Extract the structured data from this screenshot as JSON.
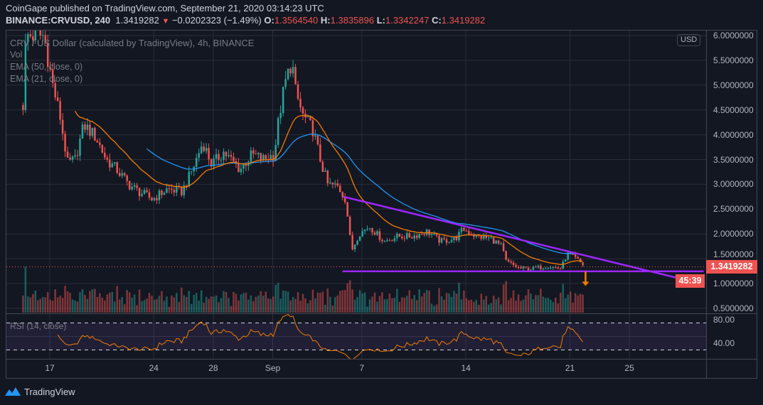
{
  "header": {
    "published": "CoinGape published on TradingView.com, September 21, 2020 03:14:23 UTC",
    "symbol": "BINANCE:CRVUSD, 240",
    "last": "1.3419282",
    "change": "−0.0202323 (−1.49%)",
    "o_label": "O:",
    "o": "1.3564540",
    "h_label": "H:",
    "h": "1.3835896",
    "l_label": "L:",
    "l": "1.3342247",
    "c_label": "C:",
    "c": "1.3419282"
  },
  "legend": {
    "title": "CRV / US Dollar (calculated by TradingView), 4h, BINANCE",
    "vol": "Vol",
    "ema50": "EMA (50, close, 0)",
    "ema21": "EMA (21, close, 0)",
    "rsi": "RSI (14, close)"
  },
  "axis": {
    "currency": "USD",
    "price_ticks": [
      "6.0000000",
      "5.5000000",
      "5.0000000",
      "4.5000000",
      "4.0000000",
      "3.5000000",
      "3.0000000",
      "2.5000000",
      "2.0000000",
      "1.5000000",
      "1.0000000",
      "0.5000000"
    ],
    "rsi_ticks": [
      "80.00",
      "40.00"
    ],
    "time_ticks": [
      {
        "label": "17",
        "day": 0
      },
      {
        "label": "24",
        "day": 7
      },
      {
        "label": "28",
        "day": 11
      },
      {
        "label": "Sep",
        "day": 15
      },
      {
        "label": "7",
        "day": 21
      },
      {
        "label": "14",
        "day": 28
      },
      {
        "label": "21",
        "day": 35
      },
      {
        "label": "25",
        "day": 39
      }
    ],
    "last_price_label": "1.3419282",
    "countdown": "45:39"
  },
  "colors": {
    "up": "#26a69a",
    "down": "#ef5350",
    "ema50": "#2196f3",
    "ema21": "#f57c00",
    "trendline": "#9c27ff",
    "arrow": "#f57c00",
    "rsi": "#f57c00"
  },
  "brand": "TradingView",
  "chart_data": {
    "type": "candlestick",
    "title": "CRV / US Dollar, 4h, BINANCE",
    "x_unit": "days since Aug 17 2020",
    "ylim": [
      0.5,
      6.0
    ],
    "rsi_ylim": [
      30,
      80
    ],
    "rsi_bands": [
      30,
      70
    ],
    "approx_close_path": [
      [
        -1.8,
        4.6
      ],
      [
        -1.6,
        6.0
      ],
      [
        -0.4,
        6.0
      ],
      [
        0.2,
        5.0
      ],
      [
        0.7,
        4.35
      ],
      [
        1.2,
        3.42
      ],
      [
        1.7,
        3.5
      ],
      [
        2.3,
        4.2
      ],
      [
        3.1,
        3.95
      ],
      [
        3.8,
        3.5
      ],
      [
        4.5,
        3.3
      ],
      [
        5.3,
        3.0
      ],
      [
        6.0,
        2.85
      ],
      [
        6.9,
        2.7
      ],
      [
        7.9,
        2.9
      ],
      [
        8.9,
        2.85
      ],
      [
        9.6,
        3.3
      ],
      [
        10.3,
        3.85
      ],
      [
        10.9,
        3.4
      ],
      [
        11.7,
        3.65
      ],
      [
        12.8,
        3.3
      ],
      [
        13.6,
        3.6
      ],
      [
        14.4,
        3.5
      ],
      [
        15.1,
        3.6
      ],
      [
        15.4,
        4.3
      ],
      [
        15.8,
        5.0
      ],
      [
        16.3,
        5.5
      ],
      [
        16.5,
        4.9
      ],
      [
        17.0,
        4.4
      ],
      [
        17.7,
        4.1
      ],
      [
        18.2,
        3.5
      ],
      [
        18.7,
        3.0
      ],
      [
        19.4,
        2.95
      ],
      [
        19.9,
        2.7
      ],
      [
        20.1,
        2.2
      ],
      [
        20.3,
        1.65
      ],
      [
        20.8,
        2.0
      ],
      [
        21.5,
        2.15
      ],
      [
        22.5,
        1.85
      ],
      [
        23.4,
        1.95
      ],
      [
        24.4,
        1.95
      ],
      [
        25.4,
        2.05
      ],
      [
        26.3,
        1.85
      ],
      [
        27.3,
        1.9
      ],
      [
        27.8,
        2.1
      ],
      [
        28.7,
        1.95
      ],
      [
        29.7,
        1.9
      ],
      [
        30.4,
        1.75
      ],
      [
        30.7,
        1.45
      ],
      [
        31.6,
        1.3
      ],
      [
        32.5,
        1.3
      ],
      [
        33.5,
        1.35
      ],
      [
        34.4,
        1.3
      ],
      [
        34.8,
        1.6
      ],
      [
        35.4,
        1.5
      ],
      [
        36.0,
        1.3419282
      ]
    ],
    "last_close": 1.3419282,
    "ema_periods": [
      50,
      21
    ],
    "rsi_period": 14,
    "annotations": {
      "descending_trendline": [
        [
          19.76,
          2.75
        ],
        [
          42.4,
          1.1
        ]
      ],
      "support_line": [
        [
          19.7,
          1.245
        ],
        [
          44.0,
          1.245
        ]
      ],
      "arrow_down": {
        "day": 36.05,
        "from": 1.24,
        "to": 0.95
      }
    }
  }
}
